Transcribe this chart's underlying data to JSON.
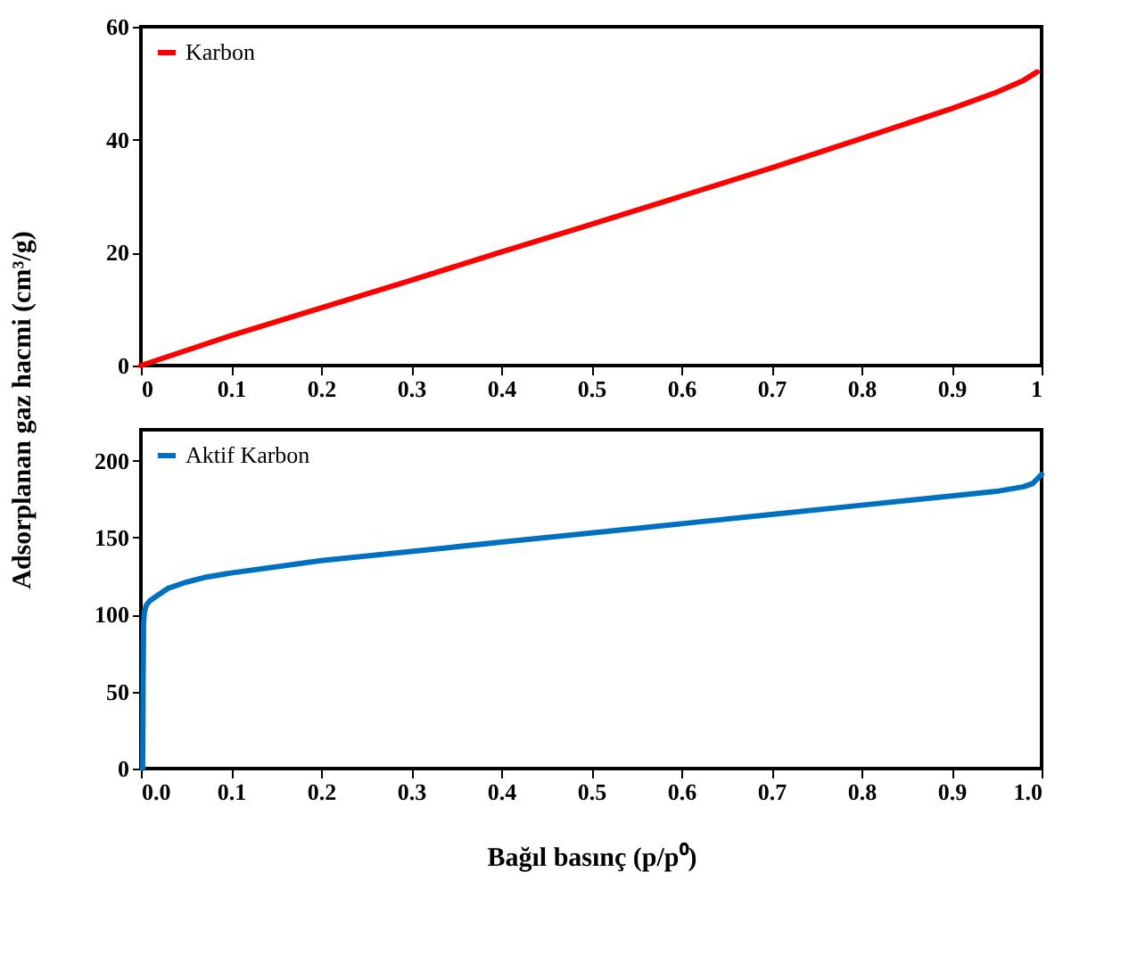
{
  "chart_data": [
    {
      "type": "line",
      "ylabel": "Adsorplanan gaz hacmi (cm³/g)",
      "legend": "top left",
      "xlim": [
        0,
        1
      ],
      "ylim": [
        0,
        60
      ],
      "xticks": [
        0,
        0.1,
        0.2,
        0.3,
        0.4,
        0.5,
        0.6,
        0.7,
        0.8,
        0.9,
        1
      ],
      "yticks": [
        0,
        20,
        40,
        60
      ],
      "grid": false,
      "series": [
        {
          "name": "Karbon",
          "color": "#ff0000",
          "x": [
            0,
            0.1,
            0.2,
            0.3,
            0.4,
            0.5,
            0.6,
            0.7,
            0.8,
            0.9,
            0.95,
            0.98,
            0.995
          ],
          "values": [
            0,
            5.3,
            10.2,
            15.1,
            20.1,
            25,
            30,
            35,
            40.2,
            45.5,
            48.4,
            50.5,
            52
          ]
        }
      ]
    },
    {
      "type": "line",
      "xlabel": "Bağıl basınç (p/p⁰)",
      "legend": "top left",
      "xlim": [
        0,
        1
      ],
      "ylim": [
        0,
        220
      ],
      "xticks": [
        {
          "value": 0,
          "label": "0.0"
        },
        0.1,
        0.2,
        0.3,
        0.4,
        0.5,
        0.6,
        0.7,
        0.8,
        0.9,
        {
          "value": 1,
          "label": "1.0"
        }
      ],
      "yticks": [
        0,
        50,
        100,
        150,
        200
      ],
      "grid": false,
      "series": [
        {
          "name": "Aktif Karbon",
          "color": "#0070c0",
          "x": [
            0.002,
            0.0025,
            0.003,
            0.004,
            0.006,
            0.01,
            0.02,
            0.03,
            0.05,
            0.07,
            0.1,
            0.15,
            0.2,
            0.3,
            0.4,
            0.5,
            0.6,
            0.7,
            0.8,
            0.9,
            0.95,
            0.98,
            0.99,
            0.995,
            1.0
          ],
          "values": [
            0,
            60,
            95,
            102,
            106,
            109,
            113,
            117,
            121,
            124,
            127,
            131,
            135,
            141,
            147,
            153,
            159,
            165,
            171,
            177,
            180,
            183,
            185,
            188,
            191
          ]
        }
      ]
    }
  ]
}
